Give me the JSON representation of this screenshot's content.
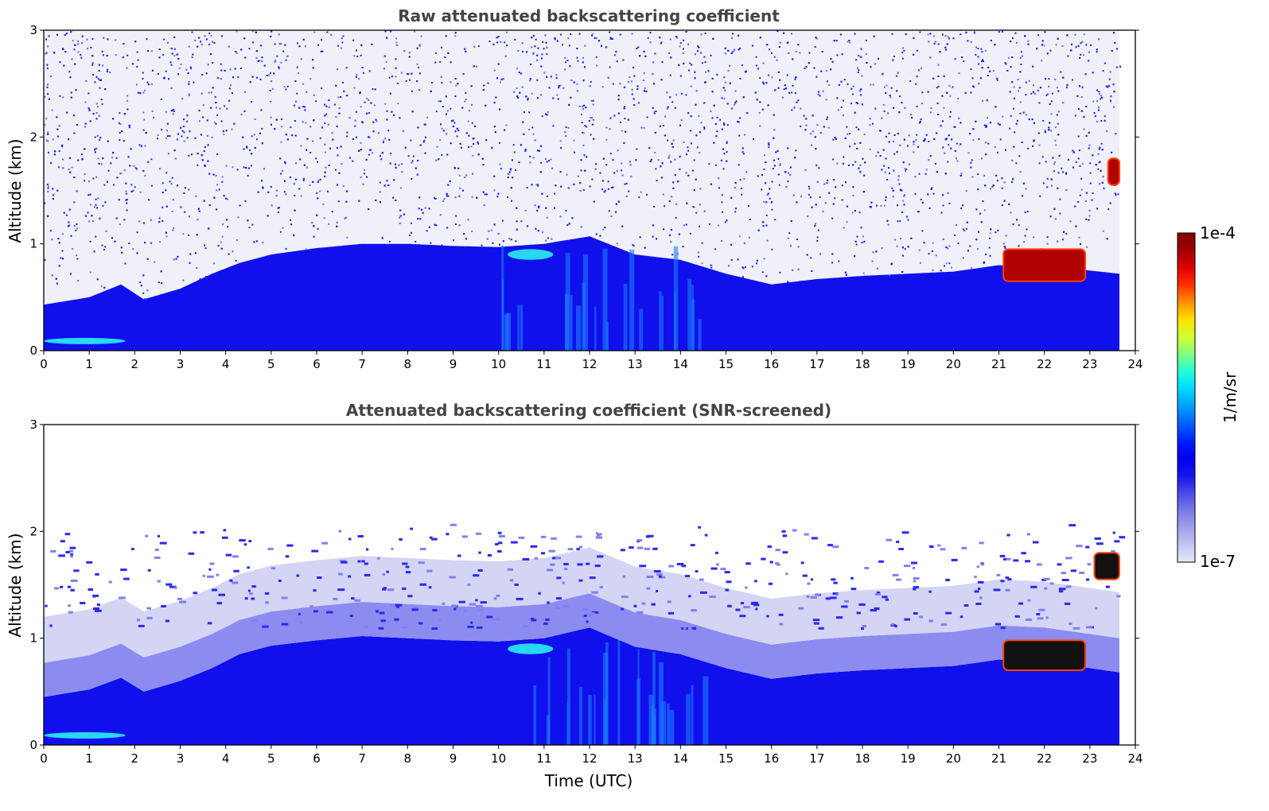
{
  "chart_data": [
    {
      "type": "heatmap",
      "title": "Raw attenuated backscattering coefficient",
      "xlabel": "",
      "ylabel": "Altitude (km)",
      "xlim": [
        0,
        24
      ],
      "ylim": [
        0,
        3
      ],
      "x_ticks": [
        "0",
        "1",
        "2",
        "3",
        "4",
        "5",
        "6",
        "7",
        "8",
        "9",
        "10",
        "11",
        "12",
        "13",
        "14",
        "15",
        "16",
        "17",
        "18",
        "19",
        "20",
        "21",
        "22",
        "23",
        "24"
      ],
      "y_ticks": [
        "0",
        "1",
        "2",
        "3"
      ],
      "data_end_time": 23.65,
      "screened": false,
      "boundary_layer_top_km": [
        [
          0,
          0.43
        ],
        [
          1,
          0.5
        ],
        [
          1.7,
          0.62
        ],
        [
          2.2,
          0.48
        ],
        [
          3,
          0.58
        ],
        [
          3.7,
          0.72
        ],
        [
          4.3,
          0.82
        ],
        [
          5,
          0.9
        ],
        [
          6,
          0.96
        ],
        [
          7,
          1.0
        ],
        [
          8,
          1.0
        ],
        [
          9,
          0.98
        ],
        [
          10,
          0.97
        ],
        [
          11,
          1.0
        ],
        [
          12,
          1.07
        ],
        [
          13,
          0.9
        ],
        [
          14,
          0.85
        ],
        [
          15,
          0.72
        ],
        [
          16,
          0.62
        ],
        [
          17,
          0.67
        ],
        [
          18,
          0.7
        ],
        [
          19,
          0.72
        ],
        [
          20,
          0.74
        ],
        [
          21,
          0.8
        ],
        [
          22,
          0.78
        ],
        [
          23,
          0.75
        ],
        [
          23.65,
          0.72
        ]
      ],
      "features": [
        {
          "name": "surface layer",
          "x": [
            0,
            1.8
          ],
          "y_km": [
            0.06,
            0.12
          ],
          "level": "high"
        },
        {
          "name": "elevated layer",
          "x": [
            10.2,
            11.2
          ],
          "y_km": [
            0.85,
            0.95
          ],
          "level": "high"
        },
        {
          "name": "convective plumes",
          "x": [
            10,
            14.5
          ],
          "y_km": [
            0,
            1.05
          ],
          "level": "medium"
        },
        {
          "name": "cloud",
          "x": [
            21.1,
            22.9
          ],
          "y_km": [
            0.65,
            0.95
          ],
          "level": "very high"
        },
        {
          "name": "cloud",
          "x": [
            23.4,
            23.65
          ],
          "y_km": [
            1.55,
            1.8
          ],
          "level": "very high"
        }
      ]
    },
    {
      "type": "heatmap",
      "title": "Attenuated backscattering coefficient (SNR-screened)",
      "xlabel": "Time (UTC)",
      "ylabel": "Altitude (km)",
      "xlim": [
        0,
        24
      ],
      "ylim": [
        0,
        3
      ],
      "x_ticks": [
        "0",
        "1",
        "2",
        "3",
        "4",
        "5",
        "6",
        "7",
        "8",
        "9",
        "10",
        "11",
        "12",
        "13",
        "14",
        "15",
        "16",
        "17",
        "18",
        "19",
        "20",
        "21",
        "22",
        "23",
        "24"
      ],
      "y_ticks": [
        "0",
        "1",
        "2",
        "3"
      ],
      "data_end_time": 23.65,
      "screened": true,
      "boundary_layer_top_km": [
        [
          0,
          0.45
        ],
        [
          1,
          0.52
        ],
        [
          1.7,
          0.63
        ],
        [
          2.2,
          0.5
        ],
        [
          3,
          0.6
        ],
        [
          3.7,
          0.72
        ],
        [
          4.3,
          0.85
        ],
        [
          5,
          0.93
        ],
        [
          6,
          0.98
        ],
        [
          7,
          1.02
        ],
        [
          8,
          1.0
        ],
        [
          9,
          0.98
        ],
        [
          10,
          0.97
        ],
        [
          11,
          1.0
        ],
        [
          12,
          1.1
        ],
        [
          13,
          0.92
        ],
        [
          14,
          0.85
        ],
        [
          15,
          0.72
        ],
        [
          16,
          0.62
        ],
        [
          17,
          0.67
        ],
        [
          18,
          0.7
        ],
        [
          19,
          0.72
        ],
        [
          20,
          0.74
        ],
        [
          21,
          0.8
        ],
        [
          22,
          0.78
        ],
        [
          23,
          0.72
        ],
        [
          23.65,
          0.68
        ]
      ],
      "features": [
        {
          "name": "surface layer",
          "x": [
            0,
            1.8
          ],
          "y_km": [
            0.06,
            0.12
          ],
          "level": "high"
        },
        {
          "name": "elevated layer",
          "x": [
            10.2,
            11.2
          ],
          "y_km": [
            0.85,
            0.95
          ],
          "level": "high"
        },
        {
          "name": "convective plumes",
          "x": [
            10,
            14.5
          ],
          "y_km": [
            0,
            1.05
          ],
          "level": "medium"
        },
        {
          "name": "cloud",
          "x": [
            21.1,
            22.9
          ],
          "y_km": [
            0.7,
            0.98
          ],
          "level": "very high"
        },
        {
          "name": "cloud",
          "x": [
            23.1,
            23.65
          ],
          "y_km": [
            1.55,
            1.8
          ],
          "level": "very high"
        }
      ]
    }
  ],
  "colorbar": {
    "label": "1/m/sr",
    "max_label": "1e-4",
    "min_label": "1e-7",
    "scale": "log",
    "range": [
      1e-07,
      0.0001
    ],
    "colors": [
      "#e8e8f8",
      "#c4c4f0",
      "#a0a0ec",
      "#7878e8",
      "#4a4ae8",
      "#1414f0",
      "#0000f0",
      "#0020ff",
      "#0060ff",
      "#00a0ff",
      "#00d8ff",
      "#20ffd8",
      "#80ff80",
      "#d0ff30",
      "#ffe000",
      "#ff9000",
      "#ff3000",
      "#e00000",
      "#a00000",
      "#800000"
    ]
  }
}
